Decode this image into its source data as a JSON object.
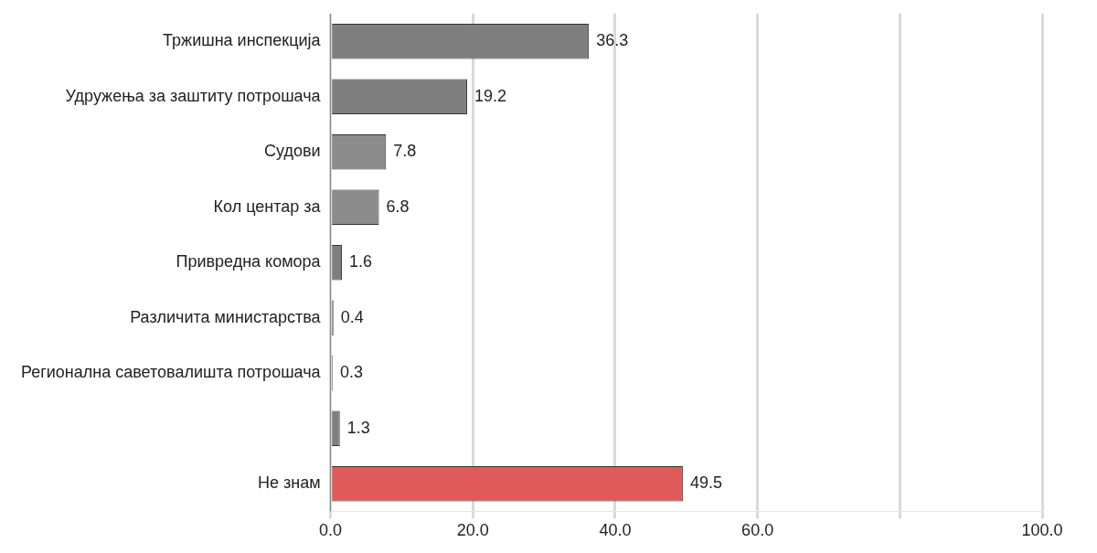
{
  "chart_data": {
    "type": "bar",
    "orientation": "horizontal",
    "categories": [
      "Тржишна инспекција",
      "Удружења за заштиту потрошача",
      "Судови",
      "Кол центар за",
      "Привредна комора",
      "Различита министарства",
      "Регионална саветовалишта потрошача",
      null,
      "Не знам"
    ],
    "values": [
      36.3,
      19.2,
      7.8,
      6.8,
      1.6,
      0.4,
      0.3,
      1.3,
      49.5
    ],
    "colors": [
      "#7f7f7f",
      "#7f7f7f",
      "#8c8c8c",
      "#8c8c8c",
      "#7f7f7f",
      "#7f7f7f",
      "#7f7f7f",
      "#7f7f7f",
      "#e05a5a"
    ],
    "xlim": [
      0,
      100
    ],
    "xticks": [
      {
        "value": 0,
        "label": "0.0"
      },
      {
        "value": 20,
        "label": "20.0"
      },
      {
        "value": 40,
        "label": "40.0"
      },
      {
        "value": 60,
        "label": "60.0"
      },
      {
        "value": 80,
        "label": null
      },
      {
        "value": 100,
        "label": "100.0"
      }
    ],
    "data_labels": true,
    "grid": "x",
    "legend": false
  }
}
